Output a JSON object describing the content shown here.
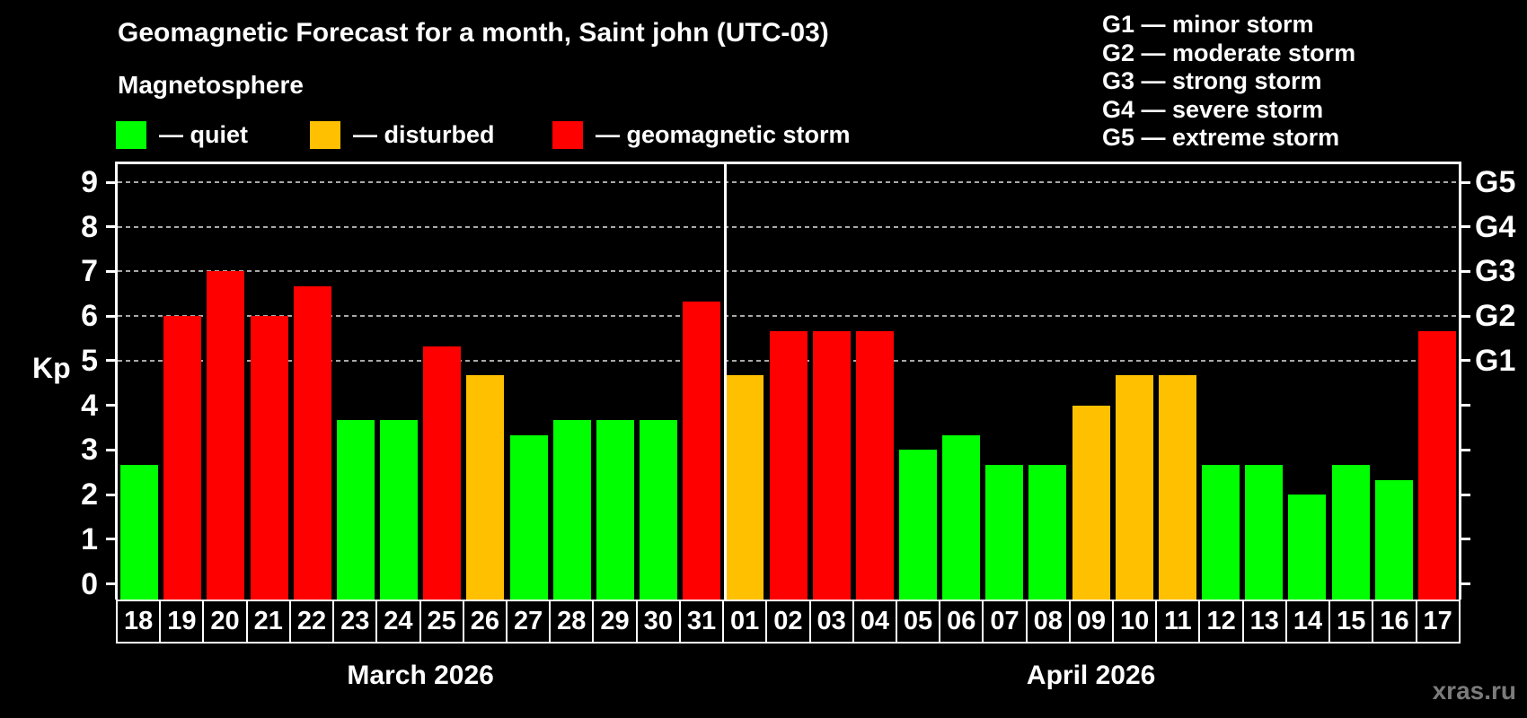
{
  "title": "Geomagnetic Forecast for a month, Saint john (UTC-03)",
  "subtitle": "Magnetosphere",
  "legend": {
    "items": [
      {
        "level": "quiet",
        "label": "— quiet",
        "color": "#00ff00"
      },
      {
        "level": "disturbed",
        "label": "— disturbed",
        "color": "#ffc000"
      },
      {
        "level": "storm",
        "label": "— geomagnetic storm",
        "color": "#ff0000"
      }
    ]
  },
  "g_scale_legend": [
    "G1 — minor storm",
    "G2 — moderate storm",
    "G3 — strong storm",
    "G4 — severe storm",
    "G5 — extreme storm"
  ],
  "watermark": "xras.ru",
  "chart_data": {
    "type": "bar",
    "title": "Geomagnetic Forecast for a month, Saint john (UTC-03)",
    "ylabel": "Kp",
    "ylim": [
      0,
      9.4
    ],
    "grid": true,
    "yticks_left": [
      0,
      1,
      2,
      3,
      4,
      5,
      6,
      7,
      8,
      9
    ],
    "gridlines_at_kp": [
      5,
      6,
      7,
      8,
      9
    ],
    "right_axis_labels": [
      {
        "kp": 5,
        "label": "G1"
      },
      {
        "kp": 6,
        "label": "G2"
      },
      {
        "kp": 7,
        "label": "G3"
      },
      {
        "kp": 8,
        "label": "G4"
      },
      {
        "kp": 9,
        "label": "G5"
      }
    ],
    "colors": {
      "quiet": "#00ff00",
      "disturbed": "#ffc000",
      "storm": "#ff0000"
    },
    "months": [
      {
        "label": "March 2026",
        "days": [
          {
            "day": "18",
            "kp": 2.67,
            "level": "quiet"
          },
          {
            "day": "19",
            "kp": 6.0,
            "level": "storm"
          },
          {
            "day": "20",
            "kp": 7.0,
            "level": "storm"
          },
          {
            "day": "21",
            "kp": 6.0,
            "level": "storm"
          },
          {
            "day": "22",
            "kp": 6.67,
            "level": "storm"
          },
          {
            "day": "23",
            "kp": 3.67,
            "level": "quiet"
          },
          {
            "day": "24",
            "kp": 3.67,
            "level": "quiet"
          },
          {
            "day": "25",
            "kp": 5.33,
            "level": "storm"
          },
          {
            "day": "26",
            "kp": 4.67,
            "level": "disturbed"
          },
          {
            "day": "27",
            "kp": 3.33,
            "level": "quiet"
          },
          {
            "day": "28",
            "kp": 3.67,
            "level": "quiet"
          },
          {
            "day": "29",
            "kp": 3.67,
            "level": "quiet"
          },
          {
            "day": "30",
            "kp": 3.67,
            "level": "quiet"
          },
          {
            "day": "31",
            "kp": 6.33,
            "level": "storm"
          }
        ]
      },
      {
        "label": "April 2026",
        "days": [
          {
            "day": "01",
            "kp": 4.67,
            "level": "disturbed"
          },
          {
            "day": "02",
            "kp": 5.67,
            "level": "storm"
          },
          {
            "day": "03",
            "kp": 5.67,
            "level": "storm"
          },
          {
            "day": "04",
            "kp": 5.67,
            "level": "storm"
          },
          {
            "day": "05",
            "kp": 3.0,
            "level": "quiet"
          },
          {
            "day": "06",
            "kp": 3.33,
            "level": "quiet"
          },
          {
            "day": "07",
            "kp": 2.67,
            "level": "quiet"
          },
          {
            "day": "08",
            "kp": 2.67,
            "level": "quiet"
          },
          {
            "day": "09",
            "kp": 4.0,
            "level": "disturbed"
          },
          {
            "day": "10",
            "kp": 4.67,
            "level": "disturbed"
          },
          {
            "day": "11",
            "kp": 4.67,
            "level": "disturbed"
          },
          {
            "day": "12",
            "kp": 2.67,
            "level": "quiet"
          },
          {
            "day": "13",
            "kp": 2.67,
            "level": "quiet"
          },
          {
            "day": "14",
            "kp": 2.0,
            "level": "quiet"
          },
          {
            "day": "15",
            "kp": 2.67,
            "level": "quiet"
          },
          {
            "day": "16",
            "kp": 2.33,
            "level": "quiet"
          },
          {
            "day": "17",
            "kp": 5.67,
            "level": "storm"
          }
        ]
      }
    ]
  }
}
